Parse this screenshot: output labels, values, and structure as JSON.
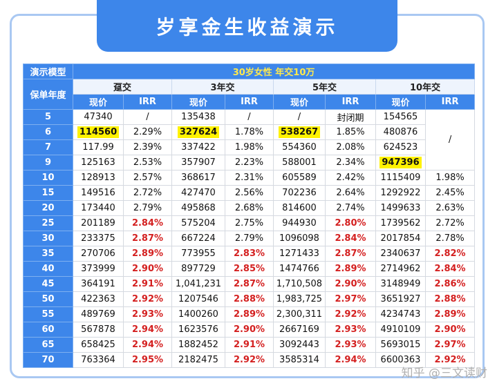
{
  "header": {
    "title": "岁享金生收益演示"
  },
  "table": {
    "model_label": "演示模型",
    "model": "30岁女性 年交10万",
    "year_label": "保单年度",
    "groups": [
      "趸交",
      "3年交",
      "5年交",
      "10年交"
    ],
    "subheaders": [
      "现价",
      "IRR",
      "现价",
      "IRR",
      "现价",
      "IRR",
      "现价",
      "IRR"
    ],
    "rows": [
      [
        "5",
        "47340",
        "/",
        "135438",
        "/",
        "/",
        "封闭期",
        "154565",
        "/"
      ],
      [
        "6",
        "114560",
        "2.29%",
        "327624",
        "1.78%",
        "538267",
        "1.85%",
        "480876"
      ],
      [
        "7",
        "117.99",
        "2.39%",
        "337422",
        "1.98%",
        "554360",
        "2.08%",
        "624523"
      ],
      [
        "9",
        "125163",
        "2.53%",
        "357907",
        "2.23%",
        "588001",
        "2.34%",
        "947396"
      ],
      [
        "10",
        "128913",
        "2.57%",
        "368617",
        "2.31%",
        "605589",
        "2.42%",
        "1115409",
        "1.98%"
      ],
      [
        "15",
        "149516",
        "2.72%",
        "427470",
        "2.56%",
        "702236",
        "2.64%",
        "1292922",
        "2.45%"
      ],
      [
        "20",
        "173440",
        "2.79%",
        "495868",
        "2.68%",
        "814600",
        "2.74%",
        "1499633",
        "2.63%"
      ],
      [
        "25",
        "201189",
        "2.84%",
        "575204",
        "2.75%",
        "944930",
        "2.80%",
        "1739562",
        "2.72%"
      ],
      [
        "30",
        "233375",
        "2.87%",
        "667224",
        "2.79%",
        "1096098",
        "2.84%",
        "2017854",
        "2.78%"
      ],
      [
        "35",
        "270706",
        "2.89%",
        "773955",
        "2.83%",
        "1271433",
        "2.87%",
        "2340637",
        "2.82%"
      ],
      [
        "40",
        "373999",
        "2.90%",
        "897729",
        "2.85%",
        "1474766",
        "2.89%",
        "2714962",
        "2.84%"
      ],
      [
        "45",
        "364191",
        "2.91%",
        "1,041,231",
        "2.87%",
        "1,710,508",
        "2.90%",
        "3148949",
        "2.86%"
      ],
      [
        "50",
        "422363",
        "2.92%",
        "1207546",
        "2.88%",
        "1,983,725",
        "2.97%",
        "3651927",
        "2.88%"
      ],
      [
        "55",
        "489769",
        "2.93%",
        "1400260",
        "2.89%",
        "2,300,311",
        "2.92%",
        "4234743",
        "2.89%"
      ],
      [
        "60",
        "567878",
        "2.94%",
        "1623576",
        "2.90%",
        "2667169",
        "2.93%",
        "4910109",
        "2.90%"
      ],
      [
        "65",
        "658425",
        "2.94%",
        "1882452",
        "2.91%",
        "3092443",
        "2.93%",
        "5693015",
        "2.97%"
      ],
      [
        "70",
        "763364",
        "2.95%",
        "2182475",
        "2.92%",
        "3585314",
        "2.94%",
        "6600363",
        "2.92%"
      ]
    ]
  },
  "watermark": "知乎 @三文读财"
}
